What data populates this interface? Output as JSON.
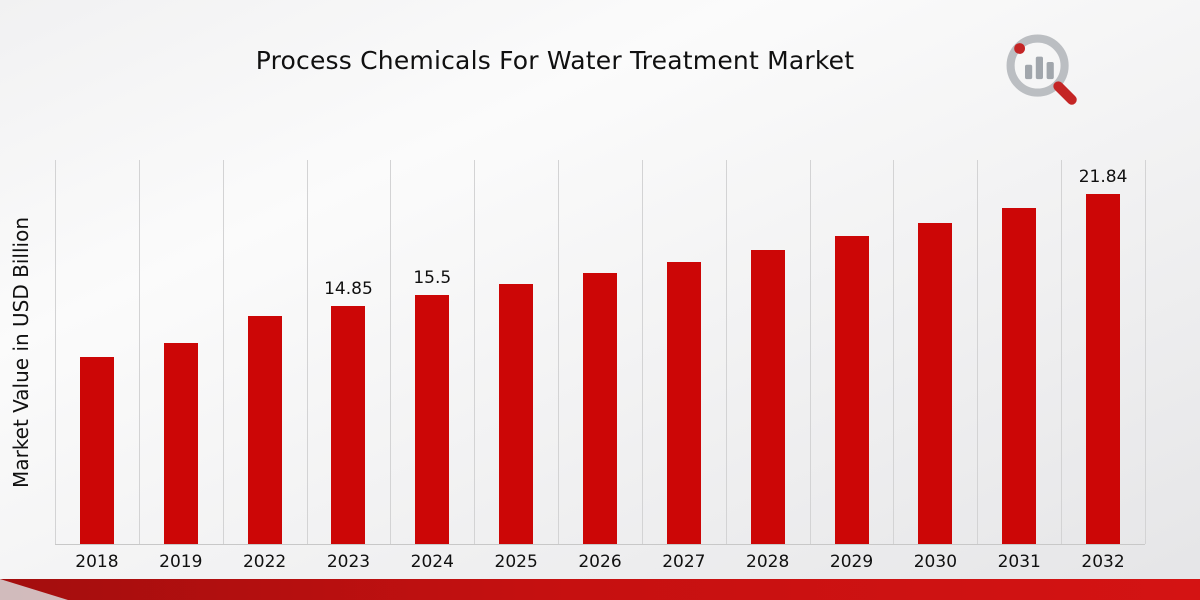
{
  "title": "Process Chemicals For Water Treatment Market",
  "y_axis_label": "Market Value in USD Billion",
  "colors": {
    "bar": "#cc0606",
    "gridline": "#d3d3d4",
    "footer_dark": "#a30e0e",
    "footer_bright": "#d41313",
    "background_light": "#fbfbfb",
    "background_dark": "#e5e5e7"
  },
  "logo": {
    "name": "market-research-magnifier-logo"
  },
  "chart_data": {
    "type": "bar",
    "title": "Process Chemicals For Water Treatment Market",
    "xlabel": "",
    "ylabel": "Market Value in USD Billion",
    "categories": [
      "2018",
      "2019",
      "2022",
      "2023",
      "2024",
      "2025",
      "2026",
      "2027",
      "2028",
      "2029",
      "2030",
      "2031",
      "2032"
    ],
    "values": [
      11.65,
      12.5,
      14.2,
      14.85,
      15.5,
      16.2,
      16.9,
      17.6,
      18.35,
      19.2,
      20.0,
      20.95,
      21.84
    ],
    "data_labels": {
      "2023": "14.85",
      "2024": "15.5",
      "2032": "21.84"
    },
    "ylim": [
      0,
      24
    ],
    "grid": "vertical",
    "legend": "none",
    "bar_color": "#cc0606"
  }
}
